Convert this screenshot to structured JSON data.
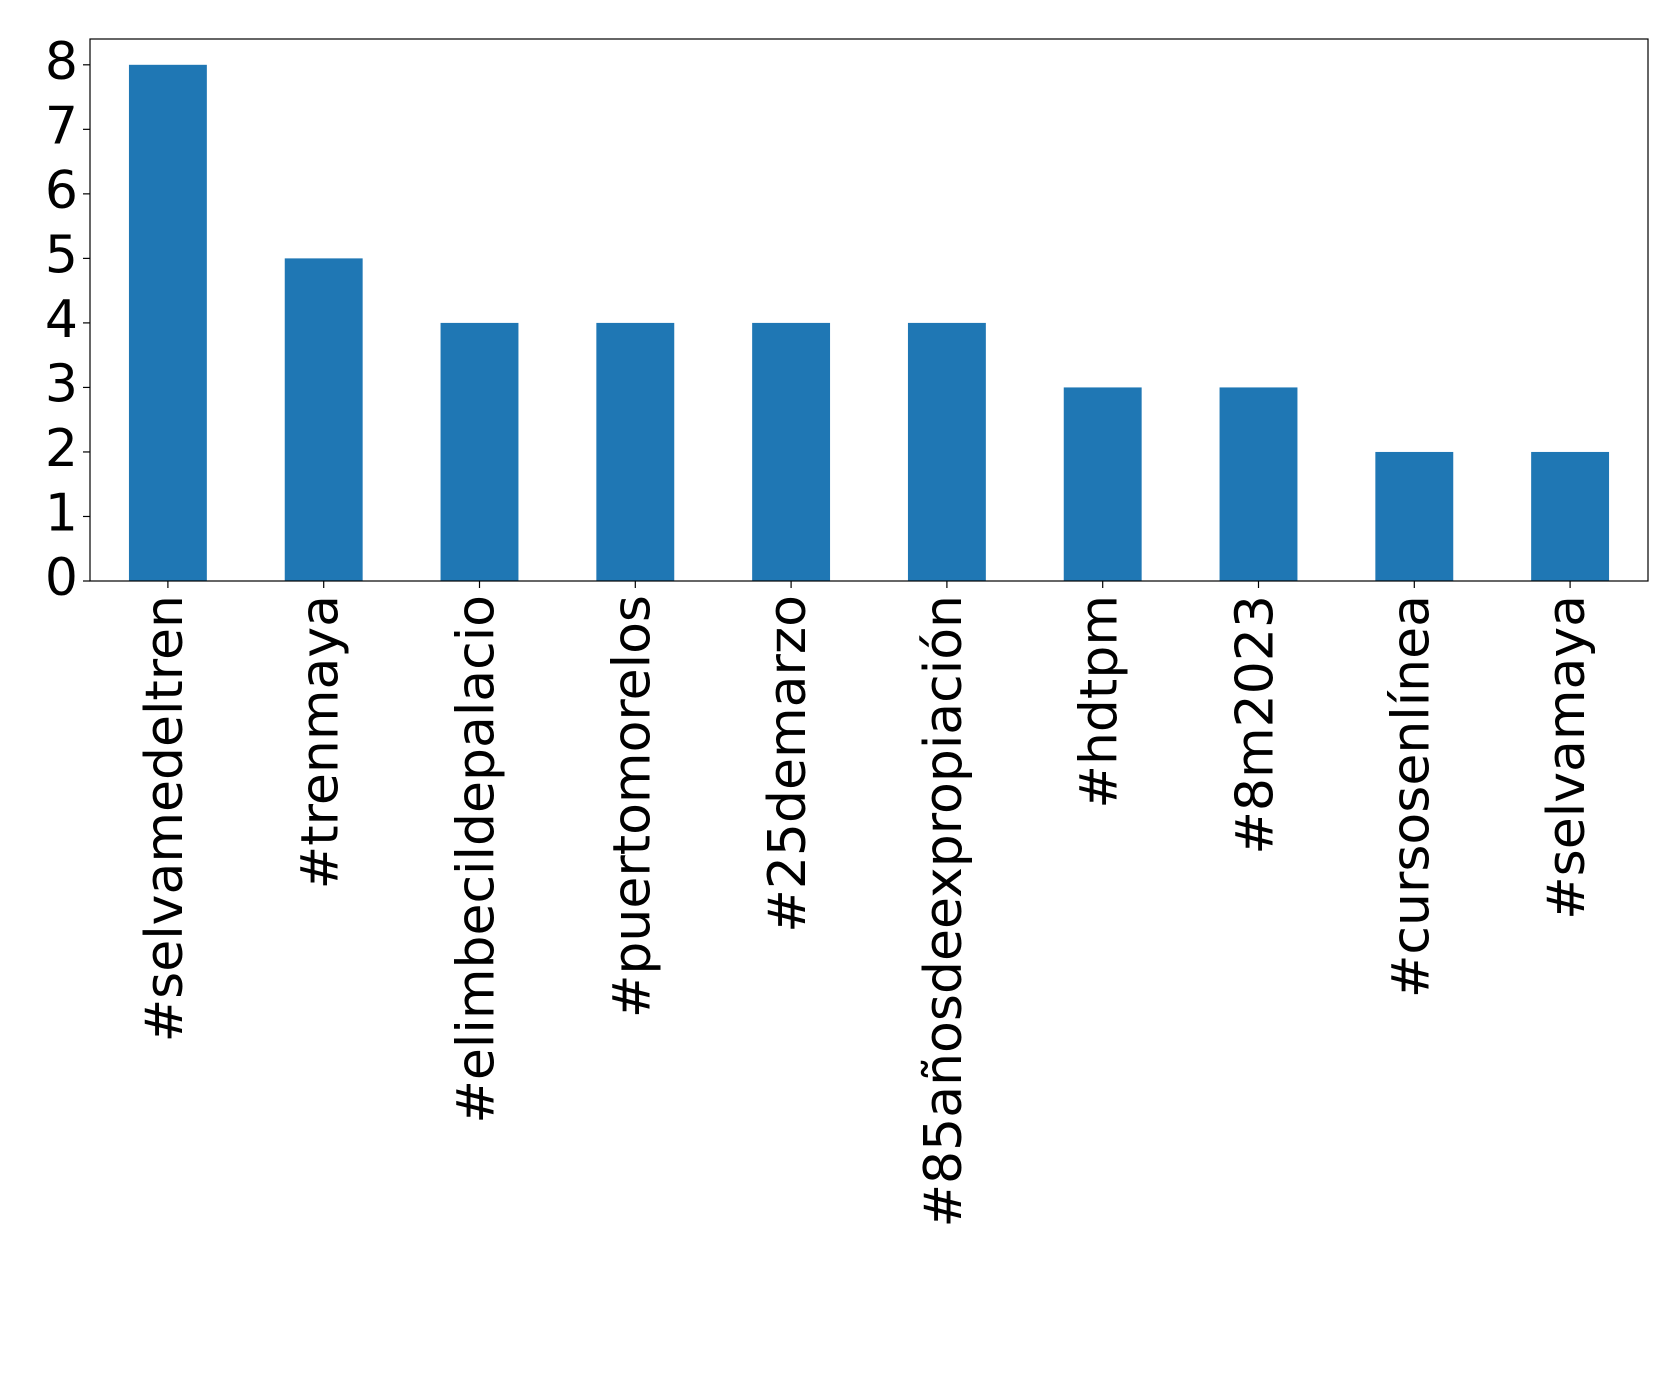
{
  "chart_data": {
    "type": "bar",
    "categories": [
      "#selvamedeltren",
      "#trenmaya",
      "#elimbecildepalacio",
      "#puertomorelos",
      "#25demarzo",
      "#85añosdeexpropiación",
      "#hdtpm",
      "#8m2023",
      "#cursosenlínea",
      "#selvamaya"
    ],
    "values": [
      8,
      5,
      4,
      4,
      4,
      4,
      3,
      3,
      2,
      2
    ],
    "color": "#1f77b4",
    "ylim": [
      0,
      8.4
    ],
    "yticks": [
      0,
      1,
      2,
      3,
      4,
      5,
      6,
      7,
      8
    ],
    "grid": false
  }
}
